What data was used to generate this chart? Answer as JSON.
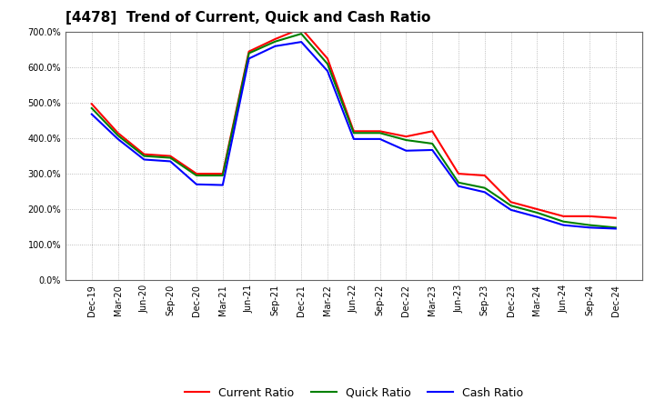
{
  "title": "[4478]  Trend of Current, Quick and Cash Ratio",
  "x_labels": [
    "Dec-19",
    "Mar-20",
    "Jun-20",
    "Sep-20",
    "Dec-20",
    "Mar-21",
    "Jun-21",
    "Sep-21",
    "Dec-21",
    "Mar-22",
    "Jun-22",
    "Sep-22",
    "Dec-22",
    "Mar-23",
    "Jun-23",
    "Sep-23",
    "Dec-23",
    "Mar-24",
    "Jun-24",
    "Sep-24",
    "Dec-24"
  ],
  "current_ratio": [
    497,
    415,
    355,
    350,
    300,
    300,
    645,
    680,
    710,
    625,
    420,
    420,
    405,
    420,
    300,
    295,
    220,
    200,
    180,
    180,
    175
  ],
  "quick_ratio": [
    485,
    408,
    350,
    345,
    295,
    295,
    640,
    673,
    695,
    610,
    415,
    415,
    395,
    385,
    275,
    260,
    210,
    190,
    165,
    155,
    148
  ],
  "cash_ratio": [
    468,
    398,
    340,
    335,
    270,
    268,
    625,
    660,
    672,
    590,
    398,
    398,
    365,
    367,
    265,
    248,
    198,
    178,
    155,
    148,
    145
  ],
  "current_color": "#ff0000",
  "quick_color": "#008000",
  "cash_color": "#0000ff",
  "ylim": [
    0,
    700
  ],
  "yticks": [
    0,
    100,
    200,
    300,
    400,
    500,
    600,
    700
  ],
  "background_color": "#ffffff",
  "grid_color": "#aaaaaa",
  "title_fontsize": 11,
  "legend_fontsize": 9,
  "axis_fontsize": 7,
  "line_width": 1.5
}
